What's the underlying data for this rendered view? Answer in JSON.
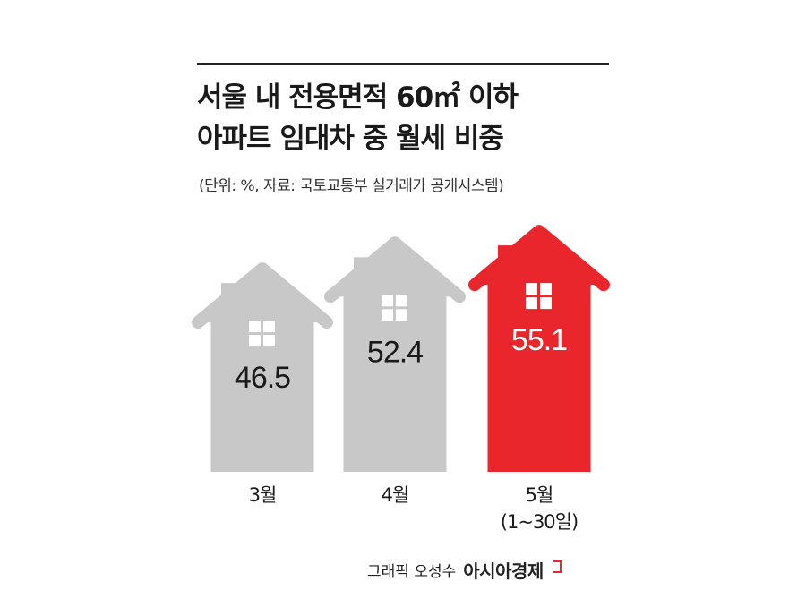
{
  "title_lines": [
    "서울 내 전용면적 60㎡ 이하",
    "아파트 임대차 중 월세 비중"
  ],
  "subtitle": "(단위: %, 자료: 국토교통부 실거래가 공개시스템)",
  "credit": {
    "text": "그래픽 오성수",
    "brand": "아시아경제"
  },
  "colors": {
    "normal": "#c8c8c8",
    "highlight": "#e8262b",
    "window": "#ffffff",
    "value_text_normal": "#1a1a1a",
    "value_text_highlight": "#ffffff"
  },
  "chart_data": {
    "type": "bar",
    "style": "house-shaped bars",
    "title": "서울 내 전용면적 60㎡ 이하 아파트 임대차 중 월세 비중",
    "subtitle": "(단위: %, 자료: 국토교통부 실거래가 공개시스템)",
    "categories": [
      "3월",
      "4월",
      "5월"
    ],
    "category_sublabels": [
      "",
      "",
      "(1~30일)"
    ],
    "values": [
      46.5,
      52.4,
      55.1
    ],
    "value_labels": [
      "46.5",
      "52.4",
      "55.1"
    ],
    "highlight_index": 2,
    "ylim": [
      0,
      60
    ],
    "grid": false,
    "legend": "none"
  }
}
